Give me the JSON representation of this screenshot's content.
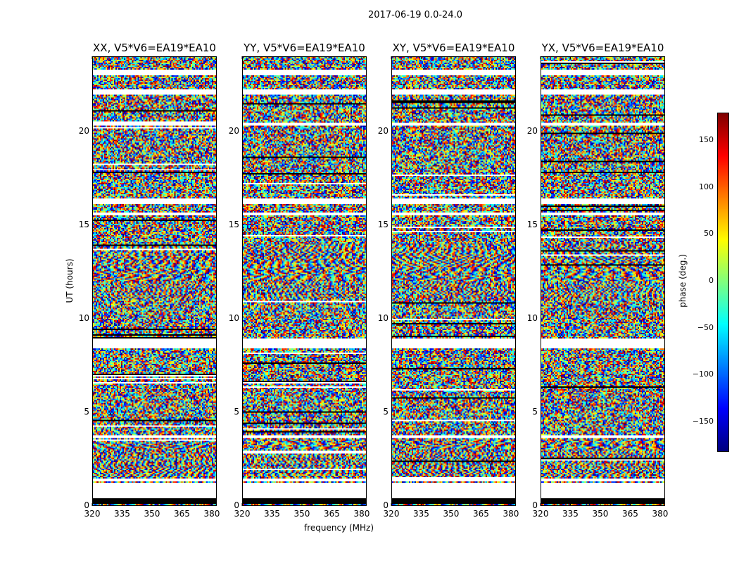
{
  "chart_data": {
    "type": "heatmap",
    "title": "2017-06-19 0.0-24.0",
    "xlabel": "frequency (MHz)",
    "ylabel": "UT (hours)",
    "xlim": [
      320,
      382.5
    ],
    "ylim": [
      0,
      24
    ],
    "xticks": [
      "320",
      "335",
      "350",
      "365",
      "380"
    ],
    "xtick_values": [
      320,
      335,
      350,
      365,
      380
    ],
    "yticks": [
      "0",
      "5",
      "10",
      "15",
      "20"
    ],
    "ytick_values": [
      0,
      5,
      10,
      15,
      20
    ],
    "panels": [
      {
        "title": "XX, V5*V6=EA19*EA10"
      },
      {
        "title": "YY, V5*V6=EA19*EA10"
      },
      {
        "title": "XY, V5*V6=EA19*EA10"
      },
      {
        "title": "YX, V5*V6=EA19*EA10"
      }
    ],
    "colorbar": {
      "label": "phase (deg.)",
      "colormap": "jet",
      "range": [
        -180,
        180
      ],
      "ticks": [
        "150",
        "100",
        "50",
        "0",
        "−50",
        "−100",
        "−150"
      ],
      "tick_values": [
        150,
        100,
        50,
        0,
        -50,
        -100,
        -150
      ]
    },
    "white_gaps_hours": [
      [
        0.4,
        1.2
      ],
      [
        1.3,
        1.45
      ],
      [
        3.6,
        3.75
      ],
      [
        8.4,
        8.9
      ],
      [
        15.5,
        15.65
      ],
      [
        16.1,
        16.4
      ],
      [
        20.3,
        20.5
      ],
      [
        22.0,
        22.3
      ],
      [
        23.0,
        23.3
      ]
    ],
    "black_band_hours": [
      [
        0.1,
        0.4
      ]
    ]
  }
}
